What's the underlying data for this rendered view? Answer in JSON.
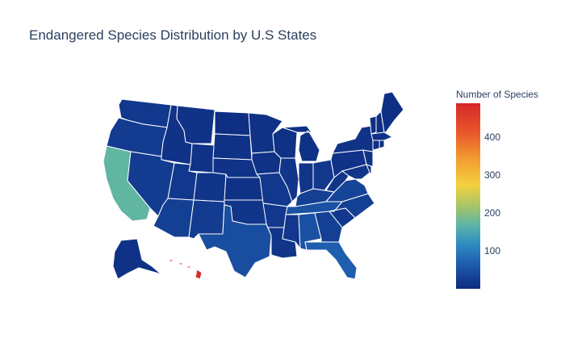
{
  "title": "Endangered Species Distribution by U.S States",
  "colorbar": {
    "title": "Number of Species",
    "ticks": [
      "100",
      "200",
      "300",
      "400"
    ],
    "tick_values": [
      100,
      200,
      300,
      400
    ],
    "range": [
      0,
      490
    ],
    "colorscale": [
      "#0d2b80",
      "#1f5fb0",
      "#2d8cc0",
      "#5ab4a8",
      "#a3c46a",
      "#f4d03f",
      "#f29c32",
      "#e8582a",
      "#d62728"
    ]
  },
  "colors": {
    "low": "#0d2e7e",
    "mid_low": "#1b56a6",
    "mid": "#2f7fc0",
    "california": "#b3c15e",
    "hawaii": "#d62728",
    "border": "#ffffff",
    "text": "#2a3f5f"
  },
  "chart_data": {
    "type": "choropleth",
    "title": "Endangered Species Distribution by U.S States",
    "colorbar_title": "Number of Species",
    "zrange": [
      0,
      490
    ],
    "states": [
      {
        "state": "HI",
        "value": 480
      },
      {
        "state": "CA",
        "value": 190
      },
      {
        "state": "FL",
        "value": 60
      },
      {
        "state": "TN",
        "value": 45
      },
      {
        "state": "AL",
        "value": 45
      },
      {
        "state": "TX",
        "value": 40
      },
      {
        "state": "VA",
        "value": 30
      },
      {
        "state": "GA",
        "value": 25
      },
      {
        "state": "NC",
        "value": 25
      },
      {
        "state": "AZ",
        "value": 25
      },
      {
        "state": "KY",
        "value": 25
      },
      {
        "state": "NV",
        "value": 20
      },
      {
        "state": "NM",
        "value": 20
      },
      {
        "state": "OR",
        "value": 20
      },
      {
        "state": "WA",
        "value": 15
      },
      {
        "state": "ID",
        "value": 10
      },
      {
        "state": "MT",
        "value": 10
      },
      {
        "state": "WY",
        "value": 10
      },
      {
        "state": "UT",
        "value": 15
      },
      {
        "state": "CO",
        "value": 12
      },
      {
        "state": "ND",
        "value": 5
      },
      {
        "state": "SD",
        "value": 8
      },
      {
        "state": "NE",
        "value": 10
      },
      {
        "state": "KS",
        "value": 8
      },
      {
        "state": "OK",
        "value": 12
      },
      {
        "state": "MN",
        "value": 8
      },
      {
        "state": "IA",
        "value": 8
      },
      {
        "state": "MO",
        "value": 15
      },
      {
        "state": "AR",
        "value": 15
      },
      {
        "state": "LA",
        "value": 12
      },
      {
        "state": "WI",
        "value": 8
      },
      {
        "state": "IL",
        "value": 12
      },
      {
        "state": "MI",
        "value": 8
      },
      {
        "state": "IN",
        "value": 12
      },
      {
        "state": "OH",
        "value": 15
      },
      {
        "state": "MS",
        "value": 15
      },
      {
        "state": "SC",
        "value": 15
      },
      {
        "state": "WV",
        "value": 12
      },
      {
        "state": "PA",
        "value": 10
      },
      {
        "state": "NY",
        "value": 10
      },
      {
        "state": "MD",
        "value": 12
      },
      {
        "state": "DE",
        "value": 8
      },
      {
        "state": "NJ",
        "value": 10
      },
      {
        "state": "CT",
        "value": 5
      },
      {
        "state": "RI",
        "value": 5
      },
      {
        "state": "MA",
        "value": 8
      },
      {
        "state": "VT",
        "value": 5
      },
      {
        "state": "NH",
        "value": 5
      },
      {
        "state": "ME",
        "value": 5
      },
      {
        "state": "AK",
        "value": 8
      }
    ]
  }
}
